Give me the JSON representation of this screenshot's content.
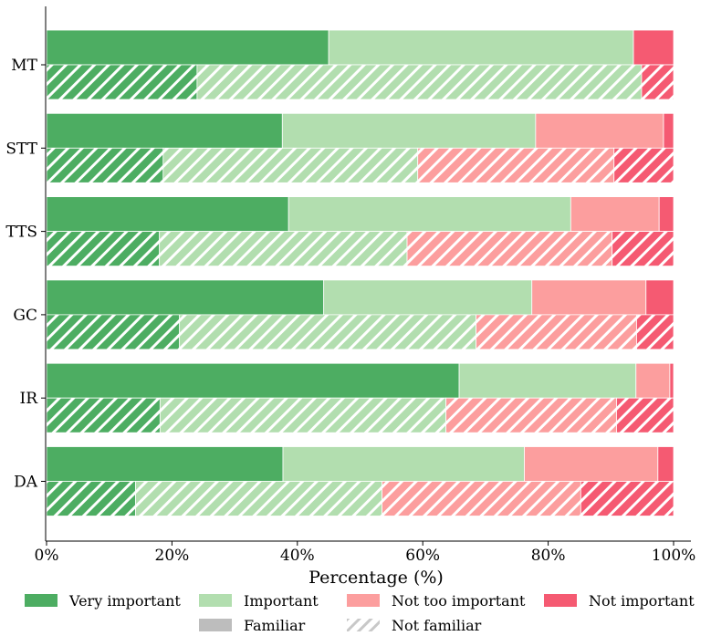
{
  "chart_data": {
    "type": "bar",
    "orientation": "horizontal",
    "stacked": true,
    "xlabel": "Percentage (%)",
    "ylabel": "",
    "xlim": [
      0,
      100
    ],
    "xticks": [
      "0%",
      "20%",
      "40%",
      "60%",
      "80%",
      "100%"
    ],
    "categories": [
      "MT",
      "STT",
      "TTS",
      "GC",
      "IR",
      "DA"
    ],
    "groups": [
      {
        "name": "Familiar",
        "pattern": "solid",
        "series": [
          {
            "name": "Very important",
            "color": "#4dad62",
            "values": [
              45.0,
              37.6,
              38.6,
              44.2,
              65.8,
              37.7
            ]
          },
          {
            "name": "Important",
            "color": "#b2deaf",
            "values": [
              48.6,
              40.4,
              45.0,
              33.2,
              28.2,
              38.5
            ]
          },
          {
            "name": "Not too important",
            "color": "#fc9e9e",
            "values": [
              0.0,
              20.4,
              14.1,
              18.2,
              5.4,
              21.3
            ]
          },
          {
            "name": "Not important",
            "color": "#f55a72",
            "values": [
              6.4,
              1.6,
              2.3,
              4.4,
              0.6,
              2.5
            ]
          }
        ]
      },
      {
        "name": "Not familiar",
        "pattern": "hatched",
        "series": [
          {
            "name": "Very important",
            "color": "#4dad62",
            "values": [
              24.0,
              18.6,
              18.0,
              21.2,
              18.1,
              14.2
            ]
          },
          {
            "name": "Important",
            "color": "#b2deaf",
            "values": [
              70.9,
              40.6,
              39.5,
              47.3,
              45.6,
              39.3
            ]
          },
          {
            "name": "Not too important",
            "color": "#fc9e9e",
            "values": [
              0.0,
              31.3,
              32.7,
              25.6,
              27.2,
              31.7
            ]
          },
          {
            "name": "Not important",
            "color": "#f55a72",
            "values": [
              5.1,
              9.5,
              9.8,
              5.9,
              9.1,
              14.8
            ]
          }
        ]
      }
    ],
    "legend": {
      "placement": "bottom",
      "items": [
        "Very important",
        "Important",
        "Not too important",
        "Not important",
        "Familiar",
        "Not familiar"
      ]
    }
  }
}
